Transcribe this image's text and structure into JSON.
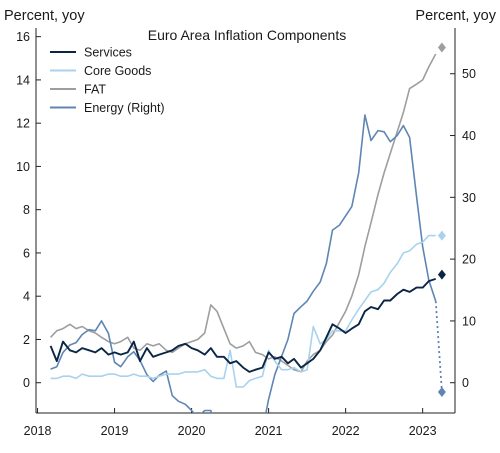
{
  "chart_data": {
    "type": "line",
    "title": "Euro Area Inflation Components",
    "ylabel_left": "Percent, yoy",
    "ylabel_right": "Percent, yoy",
    "x_ticks": [
      "2018",
      "2019",
      "2020",
      "2021",
      "2022",
      "2023"
    ],
    "x_range": [
      2017.98,
      2023.42
    ],
    "ylim_left": [
      -1.4,
      16.4
    ],
    "yticks_left": [
      0,
      2,
      4,
      6,
      8,
      10,
      12,
      14,
      16
    ],
    "ylim_right": [
      -4.9,
      57.4
    ],
    "yticks_right": [
      0,
      10,
      20,
      30,
      40,
      50
    ],
    "grid": false,
    "legend_position": "top-left",
    "colors": {
      "Services": "#0b2545",
      "Core Goods": "#a9d2ee",
      "FAT": "#9e9e9e",
      "Energy (Right)": "#5f86b3"
    },
    "series": [
      {
        "name": "Services",
        "axis": "left",
        "x": [
          2018.17,
          2018.25,
          2018.33,
          2018.42,
          2018.5,
          2018.58,
          2018.67,
          2018.75,
          2018.83,
          2018.92,
          2019.0,
          2019.08,
          2019.17,
          2019.25,
          2019.33,
          2019.42,
          2019.5,
          2019.58,
          2019.67,
          2019.75,
          2019.83,
          2019.92,
          2020.0,
          2020.08,
          2020.17,
          2020.25,
          2020.33,
          2020.42,
          2020.5,
          2020.58,
          2020.67,
          2020.75,
          2020.83,
          2020.92,
          2021.0,
          2021.08,
          2021.17,
          2021.25,
          2021.33,
          2021.42,
          2021.5,
          2021.58,
          2021.67,
          2021.75,
          2021.83,
          2021.92,
          2022.0,
          2022.08,
          2022.17,
          2022.25,
          2022.33,
          2022.42,
          2022.5,
          2022.58,
          2022.67,
          2022.75,
          2022.83,
          2022.92,
          2023.0,
          2023.08,
          2023.17
        ],
        "values": [
          1.7,
          1.0,
          1.9,
          1.5,
          1.4,
          1.6,
          1.5,
          1.4,
          1.6,
          1.3,
          1.4,
          1.3,
          1.4,
          1.9,
          1.0,
          1.6,
          1.2,
          1.3,
          1.4,
          1.5,
          1.7,
          1.8,
          1.6,
          1.5,
          1.3,
          1.6,
          1.2,
          1.2,
          0.9,
          1.0,
          0.7,
          0.5,
          0.6,
          0.7,
          1.4,
          1.1,
          1.2,
          0.9,
          1.1,
          0.7,
          0.9,
          1.1,
          1.5,
          2.1,
          2.7,
          2.5,
          2.3,
          2.5,
          2.7,
          3.3,
          3.5,
          3.4,
          3.8,
          3.8,
          4.1,
          4.3,
          4.2,
          4.4,
          4.4,
          4.7,
          4.8
        ]
      },
      {
        "name": "Core Goods",
        "axis": "left",
        "x": [
          2018.17,
          2018.25,
          2018.33,
          2018.42,
          2018.5,
          2018.58,
          2018.67,
          2018.75,
          2018.83,
          2018.92,
          2019.0,
          2019.08,
          2019.17,
          2019.25,
          2019.33,
          2019.42,
          2019.5,
          2019.58,
          2019.67,
          2019.75,
          2019.83,
          2019.92,
          2020.0,
          2020.08,
          2020.17,
          2020.25,
          2020.33,
          2020.42,
          2020.5,
          2020.58,
          2020.67,
          2020.75,
          2020.83,
          2020.92,
          2021.0,
          2021.08,
          2021.17,
          2021.25,
          2021.33,
          2021.42,
          2021.5,
          2021.58,
          2021.67,
          2021.75,
          2021.83,
          2021.92,
          2022.0,
          2022.08,
          2022.17,
          2022.25,
          2022.33,
          2022.42,
          2022.5,
          2022.58,
          2022.67,
          2022.75,
          2022.83,
          2022.92,
          2023.0,
          2023.08,
          2023.17
        ],
        "values": [
          0.2,
          0.2,
          0.3,
          0.3,
          0.2,
          0.4,
          0.3,
          0.3,
          0.3,
          0.4,
          0.4,
          0.3,
          0.3,
          0.4,
          0.3,
          0.3,
          0.2,
          0.3,
          0.4,
          0.4,
          0.4,
          0.5,
          0.5,
          0.5,
          0.6,
          0.3,
          0.2,
          0.2,
          1.5,
          -0.2,
          -0.2,
          0.1,
          0.2,
          0.3,
          1.5,
          1.0,
          0.6,
          0.6,
          0.7,
          0.5,
          0.6,
          2.6,
          1.8,
          2.0,
          2.4,
          2.4,
          2.4,
          2.9,
          3.4,
          3.8,
          4.2,
          4.3,
          4.6,
          5.1,
          5.5,
          6.0,
          6.1,
          6.4,
          6.5,
          6.8,
          6.8
        ]
      },
      {
        "name": "FAT",
        "axis": "left",
        "x": [
          2018.17,
          2018.25,
          2018.33,
          2018.42,
          2018.5,
          2018.58,
          2018.67,
          2018.75,
          2018.83,
          2018.92,
          2019.0,
          2019.08,
          2019.17,
          2019.25,
          2019.33,
          2019.42,
          2019.5,
          2019.58,
          2019.67,
          2019.75,
          2019.83,
          2019.92,
          2020.0,
          2020.08,
          2020.17,
          2020.25,
          2020.33,
          2020.42,
          2020.5,
          2020.58,
          2020.67,
          2020.75,
          2020.83,
          2020.92,
          2021.0,
          2021.08,
          2021.17,
          2021.25,
          2021.33,
          2021.42,
          2021.5,
          2021.58,
          2021.67,
          2021.75,
          2021.83,
          2021.92,
          2022.0,
          2022.08,
          2022.17,
          2022.25,
          2022.33,
          2022.42,
          2022.5,
          2022.58,
          2022.67,
          2022.75,
          2022.83,
          2022.92,
          2023.0,
          2023.08,
          2023.17
        ],
        "values": [
          2.1,
          2.4,
          2.5,
          2.7,
          2.5,
          2.6,
          2.4,
          2.3,
          2.1,
          1.9,
          1.8,
          1.9,
          2.1,
          1.6,
          1.5,
          1.8,
          1.7,
          1.8,
          1.5,
          1.4,
          1.6,
          1.8,
          1.9,
          2.0,
          2.3,
          3.6,
          3.3,
          2.5,
          1.8,
          1.6,
          1.7,
          1.9,
          1.4,
          1.3,
          1.1,
          1.2,
          1.0,
          0.8,
          0.6,
          0.5,
          1.0,
          1.3,
          1.5,
          1.9,
          2.2,
          2.8,
          3.3,
          4.0,
          5.0,
          6.3,
          7.4,
          8.7,
          9.7,
          10.6,
          11.6,
          12.5,
          13.6,
          13.8,
          14.0,
          14.6,
          15.2
        ]
      },
      {
        "name": "Energy (Right)",
        "axis": "right",
        "x": [
          2018.17,
          2018.25,
          2018.33,
          2018.42,
          2018.5,
          2018.58,
          2018.67,
          2018.75,
          2018.83,
          2018.92,
          2019.0,
          2019.08,
          2019.17,
          2019.25,
          2019.33,
          2019.42,
          2019.5,
          2019.58,
          2019.67,
          2019.75,
          2019.83,
          2019.92,
          2020.0,
          2020.08,
          2020.17,
          2020.25,
          2020.33,
          2020.42,
          2020.5,
          2020.58,
          2020.67,
          2020.75,
          2020.83,
          2020.92,
          2021.0,
          2021.08,
          2021.17,
          2021.25,
          2021.33,
          2021.42,
          2021.5,
          2021.58,
          2021.67,
          2021.75,
          2021.83,
          2021.92,
          2022.0,
          2022.08,
          2022.17,
          2022.25,
          2022.33,
          2022.42,
          2022.5,
          2022.58,
          2022.67,
          2022.75,
          2022.83,
          2022.92,
          2023.0,
          2023.08,
          2023.17
        ],
        "values": [
          2.2,
          2.6,
          4.9,
          6.1,
          6.5,
          7.8,
          8.6,
          8.4,
          10.0,
          8.0,
          3.3,
          2.6,
          4.2,
          5.0,
          3.6,
          1.3,
          0.2,
          1.2,
          1.9,
          -2.1,
          -3.0,
          -3.5,
          -4.5,
          -5.6,
          -4.5,
          -4.5,
          -8.5,
          -9.4,
          -11.9,
          -10.2,
          -8.6,
          -8.2,
          -8.0,
          -7.8,
          -2.7,
          1.3,
          4.3,
          7.0,
          11.2,
          12.3,
          13.2,
          14.8,
          16.3,
          19.3,
          24.7,
          25.5,
          27.0,
          28.5,
          34.0,
          43.3,
          39.2,
          40.8,
          40.6,
          39.0,
          40.0,
          41.6,
          39.7,
          30.2,
          22.0,
          16.6,
          13.2
        ]
      }
    ],
    "projections": [
      {
        "series": "Services",
        "x": 2023.25,
        "value": 5.0,
        "axis": "left"
      },
      {
        "series": "Core Goods",
        "x": 2023.25,
        "value": 6.8,
        "axis": "left"
      },
      {
        "series": "FAT",
        "x": 2023.25,
        "value": 15.5,
        "axis": "left"
      },
      {
        "series": "Energy (Right)",
        "x": 2023.25,
        "value": -1.5,
        "axis": "right"
      }
    ]
  }
}
